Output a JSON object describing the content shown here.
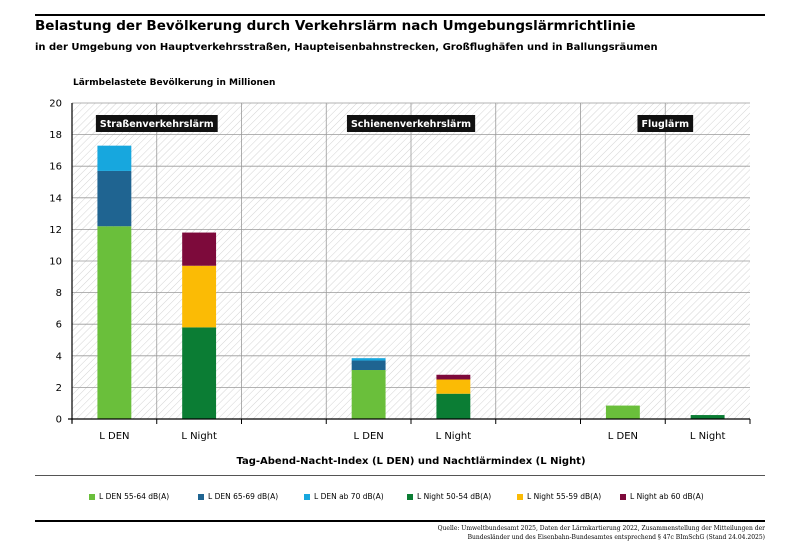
{
  "header": {
    "title": "Belastung der Bevölkerung durch Verkehrslärm nach Umgebungslärmrichtlinie",
    "subtitle": "in der Umgebung von Hauptverkehrsstraßen, Haupteisenbahnstrecken, Großflughäfen und in Ballungsräumen"
  },
  "source": {
    "line1": "Quelle: Umweltbundesamt 2025, Daten der Lärmkartierung 2022, Zusammenstellung der Mitteilungen der",
    "line2": "Bundesländer und des Eisenbahn-Bundesamtes entsprechend § 47c BImSchG (Stand 24.04.2025)"
  },
  "chart_data": {
    "type": "bar",
    "stacked": true,
    "ylabel": "Lärmbelastete Bevölkerung in Millionen",
    "xlabel": "Tag-Abend-Nacht-Index (L DEN) und Nachtlärmindex (L Night)",
    "ylim": [
      0,
      20
    ],
    "yticks": [
      0,
      2,
      4,
      6,
      8,
      10,
      12,
      14,
      16,
      18,
      20
    ],
    "grid": true,
    "legend_position": "bottom",
    "groups": [
      "Straßenverkehrslärm",
      "Schienenverkehrslärm",
      "Fluglärm"
    ],
    "categories": [
      "L DEN",
      "L Night",
      "L DEN",
      "L Night",
      "L DEN",
      "L Night"
    ],
    "series": [
      {
        "name": "L DEN 55-64 dB(A)",
        "color": "#6abf3b",
        "values": [
          12.2,
          0,
          3.1,
          0,
          0.85,
          0
        ]
      },
      {
        "name": "L DEN 65-69 dB(A)",
        "color": "#1f6491",
        "values": [
          3.5,
          0,
          0.6,
          0,
          0,
          0
        ]
      },
      {
        "name": "L DEN ab 70 dB(A)",
        "color": "#17a7de",
        "values": [
          1.6,
          0,
          0.15,
          0,
          0,
          0
        ]
      },
      {
        "name": "L Night 50-54 dB(A)",
        "color": "#0b7d34",
        "values": [
          0,
          5.8,
          0,
          1.6,
          0,
          0.25
        ]
      },
      {
        "name": "L Night 55-59 dB(A)",
        "color": "#fbbb05",
        "values": [
          0,
          3.9,
          0,
          0.9,
          0,
          0
        ]
      },
      {
        "name": "L Night ab 60 dB(A)",
        "color": "#7d0a3b",
        "values": [
          0,
          2.1,
          0,
          0.3,
          0,
          0
        ]
      }
    ]
  }
}
